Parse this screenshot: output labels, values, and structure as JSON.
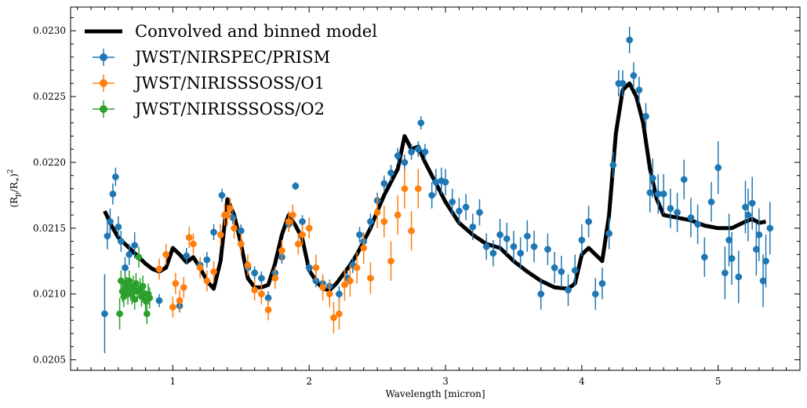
{
  "chart_data": {
    "type": "scatter",
    "xlabel": "Wavelength [micron]",
    "ylabel": "(R_p/R_*)^2",
    "xlim": [
      0.25,
      5.6
    ],
    "ylim": [
      0.02042,
      0.02318
    ],
    "xticks": [
      {
        "value": 1,
        "label": "1"
      },
      {
        "value": 2,
        "label": "2"
      },
      {
        "value": 3,
        "label": "3"
      },
      {
        "value": 4,
        "label": "4"
      },
      {
        "value": 5,
        "label": "5"
      }
    ],
    "yticks": [
      {
        "value": 0.0205,
        "label": "0.0205"
      },
      {
        "value": 0.021,
        "label": "0.0210"
      },
      {
        "value": 0.0215,
        "label": "0.0215"
      },
      {
        "value": 0.022,
        "label": "0.0220"
      },
      {
        "value": 0.0225,
        "label": "0.0225"
      },
      {
        "value": 0.023,
        "label": "0.0230"
      }
    ],
    "legend_position": "top-left",
    "model": {
      "name": "Convolved and binned model",
      "color": "#000000",
      "x": [
        0.5,
        0.55,
        0.6,
        0.65,
        0.7,
        0.75,
        0.8,
        0.85,
        0.9,
        0.95,
        1.0,
        1.05,
        1.1,
        1.15,
        1.2,
        1.25,
        1.3,
        1.35,
        1.4,
        1.45,
        1.5,
        1.55,
        1.6,
        1.65,
        1.7,
        1.75,
        1.8,
        1.85,
        1.9,
        1.95,
        2.0,
        2.05,
        2.1,
        2.15,
        2.2,
        2.25,
        2.3,
        2.35,
        2.4,
        2.45,
        2.5,
        2.55,
        2.6,
        2.65,
        2.7,
        2.75,
        2.8,
        2.85,
        2.9,
        3.0,
        3.1,
        3.2,
        3.3,
        3.4,
        3.5,
        3.6,
        3.7,
        3.8,
        3.9,
        3.95,
        4.0,
        4.05,
        4.1,
        4.15,
        4.2,
        4.25,
        4.3,
        4.35,
        4.4,
        4.45,
        4.5,
        4.55,
        4.6,
        4.7,
        4.8,
        4.9,
        5.0,
        5.1,
        5.2,
        5.25,
        5.3,
        5.35
      ],
      "y": [
        0.02163,
        0.02152,
        0.02143,
        0.02138,
        0.02133,
        0.02128,
        0.02123,
        0.02119,
        0.02117,
        0.0212,
        0.02135,
        0.0213,
        0.02124,
        0.02128,
        0.0212,
        0.0211,
        0.02104,
        0.02125,
        0.02172,
        0.0216,
        0.02138,
        0.02112,
        0.02105,
        0.02105,
        0.02107,
        0.02123,
        0.02145,
        0.0216,
        0.02152,
        0.02142,
        0.02118,
        0.0211,
        0.02104,
        0.02103,
        0.02108,
        0.02115,
        0.02122,
        0.0213,
        0.0214,
        0.0215,
        0.02163,
        0.02175,
        0.02185,
        0.02195,
        0.0222,
        0.0221,
        0.02212,
        0.022,
        0.0219,
        0.0217,
        0.02154,
        0.02145,
        0.02138,
        0.02135,
        0.02125,
        0.02117,
        0.0211,
        0.02105,
        0.02104,
        0.02108,
        0.0213,
        0.02135,
        0.0213,
        0.02125,
        0.0216,
        0.02222,
        0.02255,
        0.0226,
        0.0225,
        0.0223,
        0.02195,
        0.02172,
        0.0216,
        0.02158,
        0.02156,
        0.02152,
        0.0215,
        0.0215,
        0.02155,
        0.02157,
        0.02154,
        0.02155
      ]
    },
    "series": [
      {
        "name": "JWST/NIRSPEC/PRISM",
        "color": "#1f77b4",
        "points": [
          [
            0.5,
            0.02085,
            0.0003
          ],
          [
            0.52,
            0.02144,
            0.0001
          ],
          [
            0.54,
            0.02155,
            0.0001
          ],
          [
            0.56,
            0.02176,
            8e-05
          ],
          [
            0.58,
            0.02189,
            7e-05
          ],
          [
            0.6,
            0.02151,
            8e-05
          ],
          [
            0.62,
            0.0214,
            8e-05
          ],
          [
            0.65,
            0.0212,
            8e-05
          ],
          [
            0.68,
            0.0213,
            8e-05
          ],
          [
            0.72,
            0.02137,
            0.0001
          ],
          [
            0.9,
            0.02095,
            5e-05
          ],
          [
            1.05,
            0.02091,
            5e-05
          ],
          [
            1.1,
            0.02129,
            6e-05
          ],
          [
            1.2,
            0.02122,
            6e-05
          ],
          [
            1.25,
            0.02126,
            6e-05
          ],
          [
            1.3,
            0.02147,
            6e-05
          ],
          [
            1.36,
            0.02175,
            5e-05
          ],
          [
            1.44,
            0.02158,
            5e-05
          ],
          [
            1.5,
            0.02148,
            5e-05
          ],
          [
            1.55,
            0.0212,
            5e-05
          ],
          [
            1.6,
            0.02116,
            5e-05
          ],
          [
            1.65,
            0.02112,
            5e-05
          ],
          [
            1.7,
            0.02097,
            5e-05
          ],
          [
            1.75,
            0.02116,
            5e-05
          ],
          [
            1.8,
            0.02128,
            5e-05
          ],
          [
            1.85,
            0.02153,
            5e-05
          ],
          [
            1.9,
            0.02182,
            3e-05
          ],
          [
            1.95,
            0.02155,
            5e-05
          ],
          [
            2.0,
            0.0212,
            5e-05
          ],
          [
            2.05,
            0.0211,
            5e-05
          ],
          [
            2.1,
            0.02108,
            5e-05
          ],
          [
            2.15,
            0.02106,
            5e-05
          ],
          [
            2.22,
            0.021,
            6e-05
          ],
          [
            2.28,
            0.02112,
            6e-05
          ],
          [
            2.32,
            0.02122,
            6e-05
          ],
          [
            2.37,
            0.02145,
            6e-05
          ],
          [
            2.4,
            0.0214,
            6e-05
          ],
          [
            2.45,
            0.02155,
            6e-05
          ],
          [
            2.5,
            0.02171,
            6e-05
          ],
          [
            2.55,
            0.02184,
            6e-05
          ],
          [
            2.6,
            0.02192,
            6e-05
          ],
          [
            2.65,
            0.02205,
            6e-05
          ],
          [
            2.7,
            0.022,
            6e-05
          ],
          [
            2.75,
            0.02208,
            6e-05
          ],
          [
            2.8,
            0.0221,
            6e-05
          ],
          [
            2.82,
            0.0223,
            5e-05
          ],
          [
            2.85,
            0.02208,
            6e-05
          ],
          [
            2.9,
            0.02175,
            0.0001
          ],
          [
            2.93,
            0.02185,
            0.0001
          ],
          [
            2.97,
            0.02186,
            0.0001
          ],
          [
            3.0,
            0.02185,
            0.0001
          ],
          [
            3.05,
            0.0217,
            0.0001
          ],
          [
            3.1,
            0.02163,
            0.0001
          ],
          [
            3.15,
            0.02166,
            0.0001
          ],
          [
            3.2,
            0.02151,
            0.0001
          ],
          [
            3.25,
            0.02162,
            0.0001
          ],
          [
            3.3,
            0.02136,
            0.0001
          ],
          [
            3.35,
            0.02131,
            0.0001
          ],
          [
            3.4,
            0.02145,
            0.00012
          ],
          [
            3.45,
            0.02142,
            0.00012
          ],
          [
            3.5,
            0.02136,
            0.00012
          ],
          [
            3.55,
            0.02131,
            0.00012
          ],
          [
            3.6,
            0.02144,
            0.00012
          ],
          [
            3.65,
            0.02136,
            0.00012
          ],
          [
            3.7,
            0.021,
            0.00012
          ],
          [
            3.75,
            0.02134,
            0.00012
          ],
          [
            3.8,
            0.0212,
            0.00012
          ],
          [
            3.85,
            0.02117,
            0.00012
          ],
          [
            3.9,
            0.02103,
            0.00012
          ],
          [
            3.95,
            0.02118,
            0.00012
          ],
          [
            4.0,
            0.02141,
            0.00012
          ],
          [
            4.05,
            0.02155,
            0.00012
          ],
          [
            4.1,
            0.021,
            0.00012
          ],
          [
            4.15,
            0.02108,
            0.00012
          ],
          [
            4.2,
            0.02146,
            0.00012
          ],
          [
            4.23,
            0.02198,
            0.0001
          ],
          [
            4.27,
            0.0226,
            0.0001
          ],
          [
            4.3,
            0.0226,
            0.0001
          ],
          [
            4.35,
            0.02293,
            0.0001
          ],
          [
            4.38,
            0.02266,
            0.0001
          ],
          [
            4.42,
            0.02255,
            0.0001
          ],
          [
            4.47,
            0.02235,
            0.0001
          ],
          [
            4.5,
            0.02177,
            0.00015
          ],
          [
            4.52,
            0.02188,
            0.00015
          ],
          [
            4.56,
            0.02176,
            0.00015
          ],
          [
            4.6,
            0.02176,
            0.00015
          ],
          [
            4.65,
            0.02165,
            0.00015
          ],
          [
            4.7,
            0.02162,
            0.00015
          ],
          [
            4.75,
            0.02187,
            0.00015
          ],
          [
            4.8,
            0.02158,
            0.00015
          ],
          [
            4.85,
            0.02153,
            0.00015
          ],
          [
            4.9,
            0.02128,
            0.00015
          ],
          [
            4.95,
            0.0217,
            0.00015
          ],
          [
            5.0,
            0.02196,
            0.0002
          ],
          [
            5.05,
            0.02116,
            0.0002
          ],
          [
            5.08,
            0.02141,
            0.0002
          ],
          [
            5.1,
            0.02127,
            0.0002
          ],
          [
            5.15,
            0.02113,
            0.0002
          ],
          [
            5.2,
            0.02166,
            0.0002
          ],
          [
            5.22,
            0.0216,
            0.0002
          ],
          [
            5.25,
            0.02169,
            0.0002
          ],
          [
            5.28,
            0.02134,
            0.0002
          ],
          [
            5.3,
            0.02145,
            0.0002
          ],
          [
            5.33,
            0.0211,
            0.0002
          ],
          [
            5.35,
            0.02125,
            0.0002
          ],
          [
            5.38,
            0.0215,
            0.0002
          ]
        ]
      },
      {
        "name": "JWST/NIRISSSOSS/O1",
        "color": "#ff7f0e",
        "points": [
          [
            0.9,
            0.02119,
            8e-05
          ],
          [
            0.95,
            0.0213,
            8e-05
          ],
          [
            1.0,
            0.0209,
            8e-05
          ],
          [
            1.02,
            0.02108,
            8e-05
          ],
          [
            1.05,
            0.02095,
            8e-05
          ],
          [
            1.08,
            0.02105,
            8e-05
          ],
          [
            1.12,
            0.02143,
            8e-05
          ],
          [
            1.15,
            0.02138,
            8e-05
          ],
          [
            1.2,
            0.0212,
            8e-05
          ],
          [
            1.25,
            0.0211,
            8e-05
          ],
          [
            1.3,
            0.02117,
            8e-05
          ],
          [
            1.35,
            0.02145,
            8e-05
          ],
          [
            1.38,
            0.0216,
            8e-05
          ],
          [
            1.4,
            0.0216,
            8e-05
          ],
          [
            1.42,
            0.02165,
            8e-05
          ],
          [
            1.45,
            0.0215,
            8e-05
          ],
          [
            1.5,
            0.02138,
            8e-05
          ],
          [
            1.55,
            0.02122,
            8e-05
          ],
          [
            1.6,
            0.02103,
            8e-05
          ],
          [
            1.65,
            0.021,
            8e-05
          ],
          [
            1.7,
            0.02088,
            8e-05
          ],
          [
            1.75,
            0.02112,
            8e-05
          ],
          [
            1.8,
            0.02133,
            8e-05
          ],
          [
            1.85,
            0.02155,
            8e-05
          ],
          [
            1.88,
            0.0216,
            8e-05
          ],
          [
            1.92,
            0.02138,
            8e-05
          ],
          [
            1.95,
            0.02145,
            8e-05
          ],
          [
            2.0,
            0.0215,
            8e-05
          ],
          [
            2.05,
            0.0212,
            0.0001
          ],
          [
            2.1,
            0.02105,
            0.0001
          ],
          [
            2.15,
            0.021,
            0.0001
          ],
          [
            2.18,
            0.02082,
            0.00012
          ],
          [
            2.22,
            0.02085,
            0.00012
          ],
          [
            2.26,
            0.02107,
            0.00012
          ],
          [
            2.3,
            0.0211,
            0.00012
          ],
          [
            2.35,
            0.0212,
            0.00012
          ],
          [
            2.4,
            0.02135,
            0.00012
          ],
          [
            2.45,
            0.02112,
            0.00012
          ],
          [
            2.5,
            0.02162,
            0.00012
          ],
          [
            2.55,
            0.02155,
            0.00012
          ],
          [
            2.6,
            0.02125,
            0.00015
          ],
          [
            2.65,
            0.0216,
            0.00015
          ],
          [
            2.7,
            0.0218,
            0.00015
          ],
          [
            2.75,
            0.02148,
            0.00015
          ],
          [
            2.8,
            0.0218,
            0.00015
          ]
        ]
      },
      {
        "name": "JWST/NIRISSSOSS/O2",
        "color": "#2ca02c",
        "points": [
          [
            0.61,
            0.02085,
            0.00012
          ],
          [
            0.62,
            0.0211,
            8e-05
          ],
          [
            0.63,
            0.02102,
            8e-05
          ],
          [
            0.64,
            0.02098,
            8e-05
          ],
          [
            0.65,
            0.02108,
            8e-05
          ],
          [
            0.66,
            0.02105,
            8e-05
          ],
          [
            0.67,
            0.021,
            8e-05
          ],
          [
            0.68,
            0.0211,
            8e-05
          ],
          [
            0.69,
            0.02103,
            8e-05
          ],
          [
            0.7,
            0.021,
            8e-05
          ],
          [
            0.71,
            0.02106,
            8e-05
          ],
          [
            0.72,
            0.02096,
            8e-05
          ],
          [
            0.73,
            0.02108,
            8e-05
          ],
          [
            0.74,
            0.02102,
            8e-05
          ],
          [
            0.75,
            0.02128,
            8e-05
          ],
          [
            0.76,
            0.02104,
            8e-05
          ],
          [
            0.77,
            0.02098,
            8e-05
          ],
          [
            0.78,
            0.02106,
            8e-05
          ],
          [
            0.79,
            0.021,
            8e-05
          ],
          [
            0.8,
            0.02095,
            8e-05
          ],
          [
            0.81,
            0.02085,
            8e-05
          ],
          [
            0.82,
            0.021,
            8e-05
          ],
          [
            0.83,
            0.02097,
            8e-05
          ]
        ]
      }
    ]
  }
}
